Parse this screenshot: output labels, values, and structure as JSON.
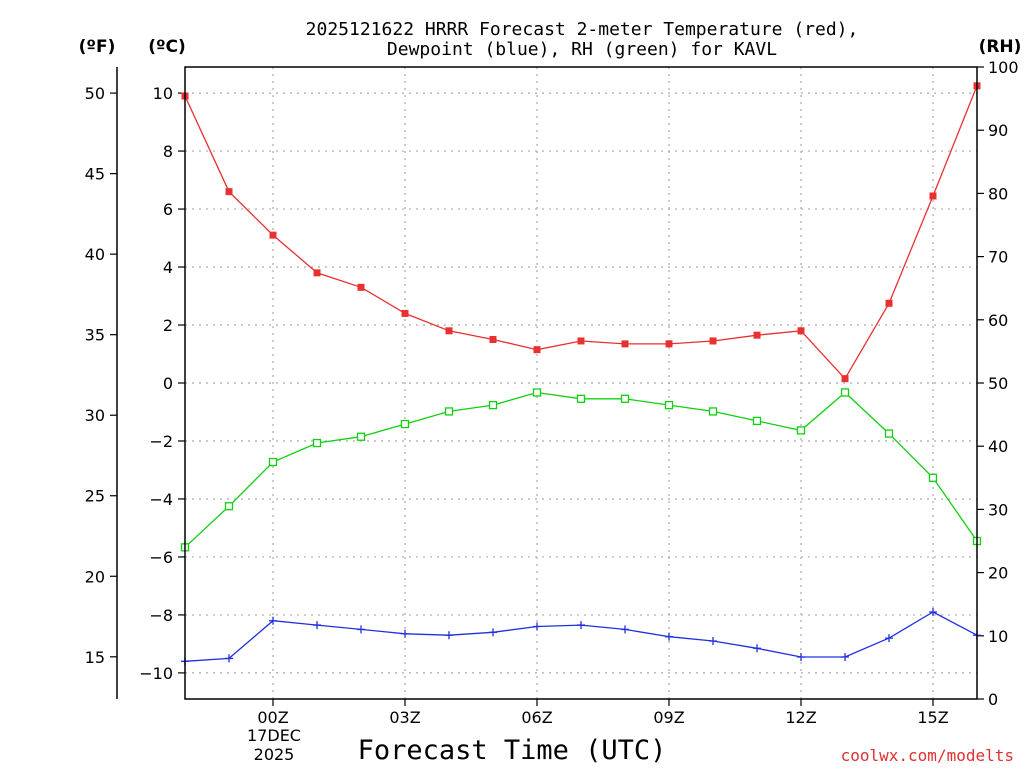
{
  "chart_data": {
    "type": "line",
    "title_lines": [
      "2025121622 HRRR Forecast 2-meter Temperature (red),",
      "Dewpoint (blue), RH (green) for KAVL"
    ],
    "xlabel": "Forecast Time (UTC)",
    "credit": "coolwx.com/modelts",
    "date_lines": [
      "17DEC",
      "2025"
    ],
    "x_hours": [
      -2,
      -1,
      0,
      1,
      2,
      3,
      4,
      5,
      6,
      7,
      8,
      9,
      10,
      11,
      12,
      13,
      14,
      15,
      16
    ],
    "xlim": [
      -2,
      16
    ],
    "x_ticks": [
      {
        "hour": 0,
        "label": "00Z"
      },
      {
        "hour": 3,
        "label": "03Z"
      },
      {
        "hour": 6,
        "label": "06Z"
      },
      {
        "hour": 9,
        "label": "09Z"
      },
      {
        "hour": 12,
        "label": "12Z"
      },
      {
        "hour": 15,
        "label": "15Z"
      }
    ],
    "x_gridlines": [
      0,
      3,
      6,
      9,
      12,
      15
    ],
    "y_celsius": {
      "unit_label": "(ºC)",
      "ylim": [
        -10.9,
        10.9
      ],
      "ticks": [
        10,
        8,
        6,
        4,
        2,
        0,
        -2,
        -4,
        -6,
        -8,
        -10
      ],
      "tick_labels": [
        "10",
        "8",
        "6",
        "4",
        "2",
        "0",
        "−2",
        "−4",
        "−6",
        "−8",
        "−10"
      ],
      "gridlines": [
        10,
        8,
        6,
        4,
        2,
        0,
        -2,
        -4,
        -6,
        -8,
        -10
      ]
    },
    "y_fahrenheit": {
      "unit_label": "(ºF)",
      "ticks": [
        50,
        45,
        40,
        35,
        30,
        25,
        20,
        15
      ],
      "tick_labels": [
        "50",
        "45",
        "40",
        "35",
        "30",
        "25",
        "20",
        "15"
      ]
    },
    "y_rh": {
      "unit_label": "(RH)",
      "ylim": [
        0,
        100
      ],
      "ticks": [
        100,
        90,
        80,
        70,
        60,
        50,
        40,
        30,
        20,
        10,
        0
      ],
      "tick_labels": [
        "100",
        "90",
        "80",
        "70",
        "60",
        "50",
        "40",
        "30",
        "20",
        "10",
        "0"
      ]
    },
    "series": [
      {
        "name": "Temperature",
        "axis": "celsius",
        "color": "#e83030",
        "marker": "filled-square",
        "values": [
          9.9,
          6.6,
          5.1,
          3.8,
          3.3,
          2.4,
          1.8,
          1.5,
          1.15,
          1.45,
          1.35,
          1.35,
          1.45,
          1.65,
          1.8,
          0.15,
          2.75,
          6.45,
          10.25
        ]
      },
      {
        "name": "Dewpoint",
        "axis": "celsius",
        "color": "#2030e0",
        "marker": "plus",
        "values": [
          -9.6,
          -9.5,
          -8.2,
          -8.35,
          -8.5,
          -8.65,
          -8.7,
          -8.6,
          -8.4,
          -8.35,
          -8.5,
          -8.75,
          -8.9,
          -9.15,
          -9.45,
          -9.45,
          -8.8,
          -7.9,
          -8.7
        ]
      },
      {
        "name": "RH",
        "axis": "rh",
        "color": "#10d010",
        "marker": "open-square",
        "values": [
          24,
          30.5,
          37.5,
          40.5,
          41.5,
          43.5,
          45.5,
          46.5,
          48.5,
          47.5,
          47.5,
          46.5,
          45.5,
          44,
          42.5,
          48.5,
          42,
          35,
          25
        ]
      }
    ]
  }
}
